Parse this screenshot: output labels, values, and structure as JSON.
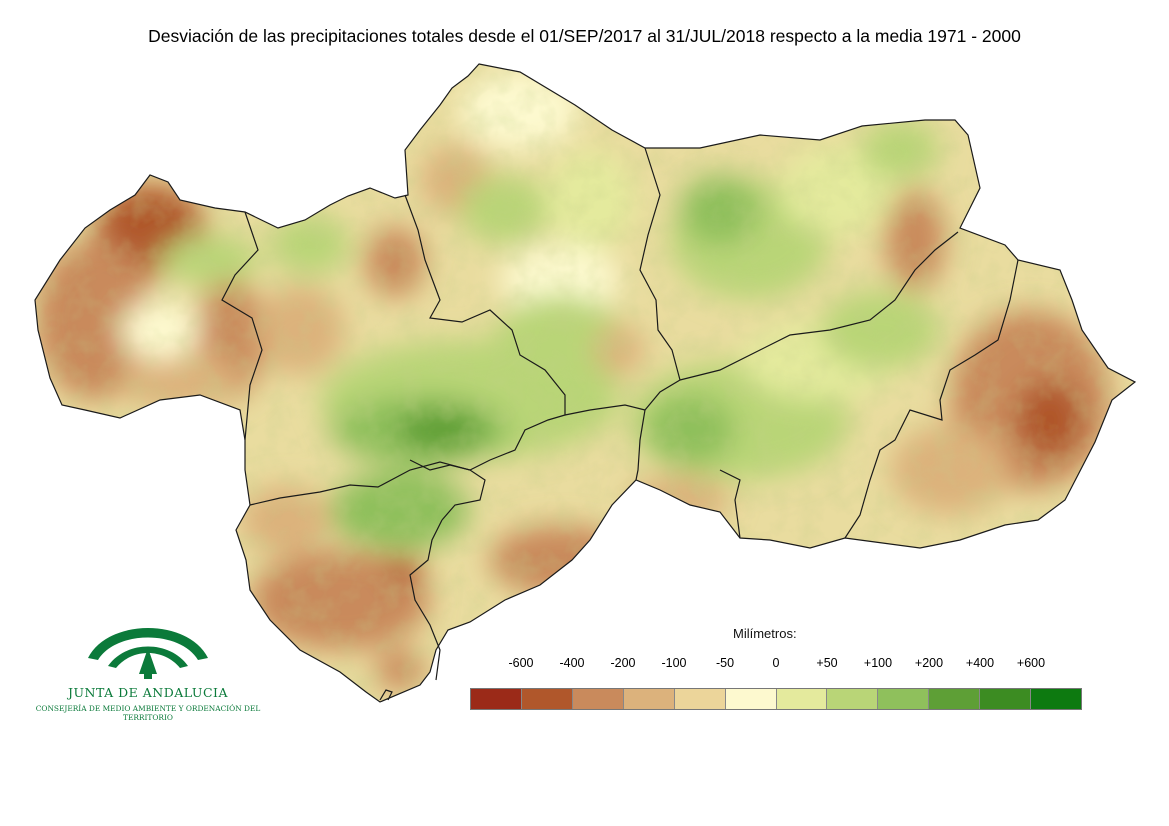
{
  "title": "Desviación de las precipitaciones totales desde el 01/SEP/2017 al 31/JUL/2018 respecto a la media 1971 - 2000",
  "legend": {
    "title": "Milímetros:",
    "labels": [
      "-600",
      "-400",
      "-200",
      "-100",
      "-50",
      "0",
      "+50",
      "+100",
      "+200",
      "+400",
      "+600"
    ],
    "colors": [
      "#9b2a18",
      "#b0572b",
      "#c98a5c",
      "#dcb27c",
      "#ecd59a",
      "#fdf9cf",
      "#e4ea9d",
      "#b9d577",
      "#8fc05c",
      "#5e9f36",
      "#3c8c22",
      "#0d7a10"
    ]
  },
  "logo": {
    "name": "JUNTA DE ANDALUCIA",
    "subtitle": "CONSEJERÍA DE MEDIO AMBIENTE Y ORDENACIÓN DEL TERRITORIO"
  },
  "map": {
    "colors": {
      "base": "#e9dc9f",
      "very_dry": "#b0572b",
      "dry": "#c98a5c",
      "slightly_dry": "#dcb27c",
      "neutral": "#fdf9cf",
      "slightly_wet": "#e4ea9d",
      "wet": "#b9d577",
      "wetter": "#8fc05c",
      "very_wet": "#5e9f36",
      "boundary": "#1a1a1a"
    }
  }
}
